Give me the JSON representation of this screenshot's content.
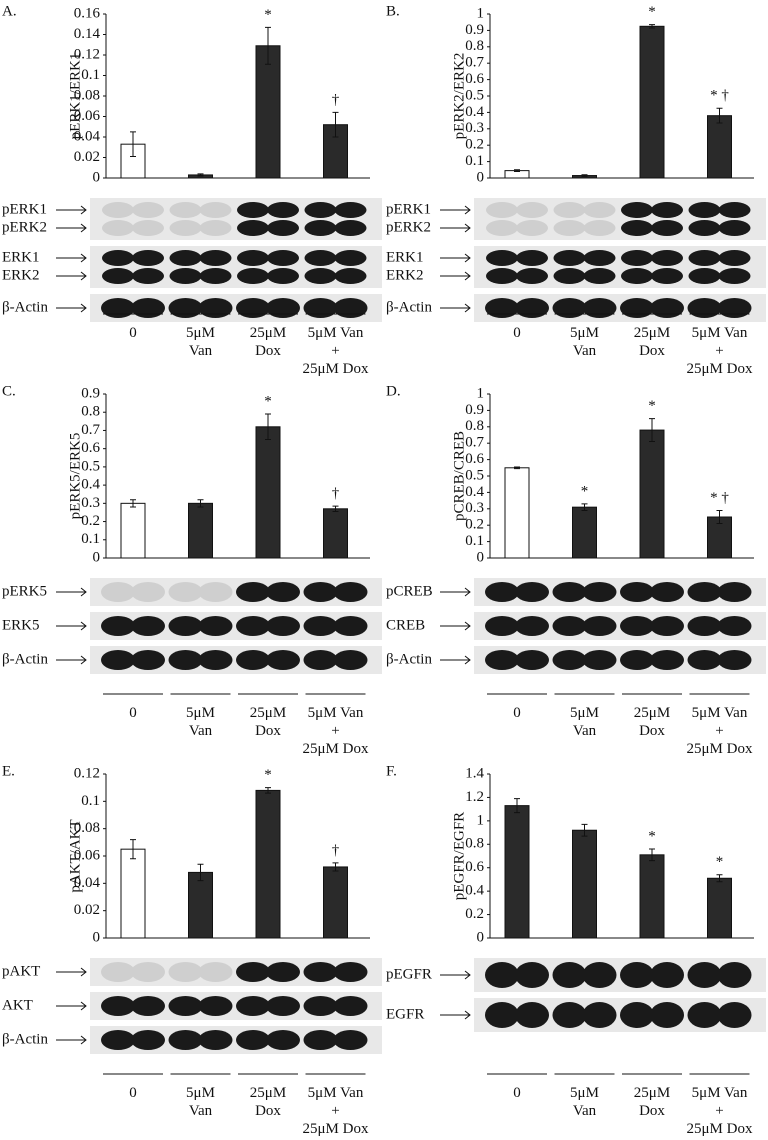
{
  "chart_data": [
    {
      "type": "bar",
      "panel_label": "A.",
      "y_label": "pERK1/ERK1",
      "categories": [
        "0",
        "5μM\nVan",
        "25μM\nDox",
        "5μM Van\n+\n25μM Dox"
      ],
      "values": [
        0.033,
        0.003,
        0.129,
        0.052
      ],
      "errors": [
        0.012,
        0.001,
        0.018,
        0.012
      ],
      "colors": [
        "#ffffff",
        "#2a2a2a",
        "#2a2a2a",
        "#2a2a2a"
      ],
      "annotations": [
        null,
        null,
        "*",
        "†"
      ],
      "ylim": [
        0,
        0.16
      ],
      "yticks": [
        0,
        0.02,
        0.04,
        0.06,
        0.08,
        0.1,
        0.12,
        0.14,
        0.16
      ],
      "blot_rows": [
        [
          "pERK1",
          "pERK2"
        ],
        [
          "ERK1",
          "ERK2"
        ],
        [
          "β-Actin"
        ]
      ]
    },
    {
      "type": "bar",
      "panel_label": "B.",
      "y_label": "pERK2/ERK2",
      "categories": [
        "0",
        "5μM\nVan",
        "25μM\nDox",
        "5μM Van\n+\n25μM Dox"
      ],
      "values": [
        0.045,
        0.015,
        0.925,
        0.38
      ],
      "errors": [
        0.005,
        0.005,
        0.01,
        0.045
      ],
      "colors": [
        "#ffffff",
        "#2a2a2a",
        "#2a2a2a",
        "#2a2a2a"
      ],
      "annotations": [
        null,
        null,
        "*",
        "* †"
      ],
      "ylim": [
        0,
        1
      ],
      "yticks": [
        0,
        0.1,
        0.2,
        0.3,
        0.4,
        0.5,
        0.6,
        0.7,
        0.8,
        0.9,
        1
      ],
      "blot_rows": [
        [
          "pERK1",
          "pERK2"
        ],
        [
          "ERK1",
          "ERK2"
        ],
        [
          "β-Actin"
        ]
      ]
    },
    {
      "type": "bar",
      "panel_label": "C.",
      "y_label": "pERK5/ERK5",
      "categories": [
        "0",
        "5μM\nVan",
        "25μM\nDox",
        "5μM Van\n+\n25μM Dox"
      ],
      "values": [
        0.3,
        0.3,
        0.72,
        0.27
      ],
      "errors": [
        0.02,
        0.02,
        0.07,
        0.015
      ],
      "colors": [
        "#ffffff",
        "#2a2a2a",
        "#2a2a2a",
        "#2a2a2a"
      ],
      "annotations": [
        null,
        null,
        "*",
        "†"
      ],
      "ylim": [
        0,
        0.9
      ],
      "yticks": [
        0,
        0.1,
        0.2,
        0.3,
        0.4,
        0.5,
        0.6,
        0.7,
        0.8,
        0.9
      ],
      "blot_rows": [
        [
          "pERK5"
        ],
        [
          "ERK5"
        ],
        [
          "β-Actin"
        ]
      ]
    },
    {
      "type": "bar",
      "panel_label": "D.",
      "y_label": "pCREB/CREB",
      "categories": [
        "0",
        "5μM\nVan",
        "25μM\nDox",
        "5μM Van\n+\n25μM Dox"
      ],
      "values": [
        0.55,
        0.31,
        0.78,
        0.25
      ],
      "errors": [
        0.005,
        0.02,
        0.07,
        0.04
      ],
      "colors": [
        "#ffffff",
        "#2a2a2a",
        "#2a2a2a",
        "#2a2a2a"
      ],
      "annotations": [
        null,
        "*",
        "*",
        "* †"
      ],
      "ylim": [
        0,
        1
      ],
      "yticks": [
        0,
        0.1,
        0.2,
        0.3,
        0.4,
        0.5,
        0.6,
        0.7,
        0.8,
        0.9,
        1
      ],
      "blot_rows": [
        [
          "pCREB"
        ],
        [
          "CREB"
        ],
        [
          "β-Actin"
        ]
      ]
    },
    {
      "type": "bar",
      "panel_label": "E.",
      "y_label": "pAKT/AKT",
      "categories": [
        "0",
        "5μM\nVan",
        "25μM\nDox",
        "5μM Van\n+\n25μM Dox"
      ],
      "values": [
        0.065,
        0.048,
        0.108,
        0.052
      ],
      "errors": [
        0.007,
        0.006,
        0.002,
        0.003
      ],
      "colors": [
        "#ffffff",
        "#2a2a2a",
        "#2a2a2a",
        "#2a2a2a"
      ],
      "annotations": [
        null,
        null,
        "*",
        "†"
      ],
      "ylim": [
        0,
        0.12
      ],
      "yticks": [
        0,
        0.02,
        0.04,
        0.06,
        0.08,
        0.1,
        0.12
      ],
      "blot_rows": [
        [
          "pAKT"
        ],
        [
          "AKT"
        ],
        [
          "β-Actin"
        ]
      ]
    },
    {
      "type": "bar",
      "panel_label": "F.",
      "y_label": "pEGFR/EGFR",
      "categories": [
        "0",
        "5μM\nVan",
        "25μM\nDox",
        "5μM Van\n+\n25μM Dox"
      ],
      "values": [
        1.13,
        0.92,
        0.71,
        0.51
      ],
      "errors": [
        0.06,
        0.05,
        0.05,
        0.03
      ],
      "colors": [
        "#2a2a2a",
        "#2a2a2a",
        "#2a2a2a",
        "#2a2a2a"
      ],
      "annotations": [
        null,
        null,
        "*",
        "*"
      ],
      "ylim": [
        0,
        1.4
      ],
      "yticks": [
        0,
        0.2,
        0.4,
        0.6,
        0.8,
        1,
        1.2,
        1.4
      ],
      "blot_rows": [
        [
          "pEGFR"
        ],
        [
          "EGFR"
        ]
      ]
    }
  ]
}
